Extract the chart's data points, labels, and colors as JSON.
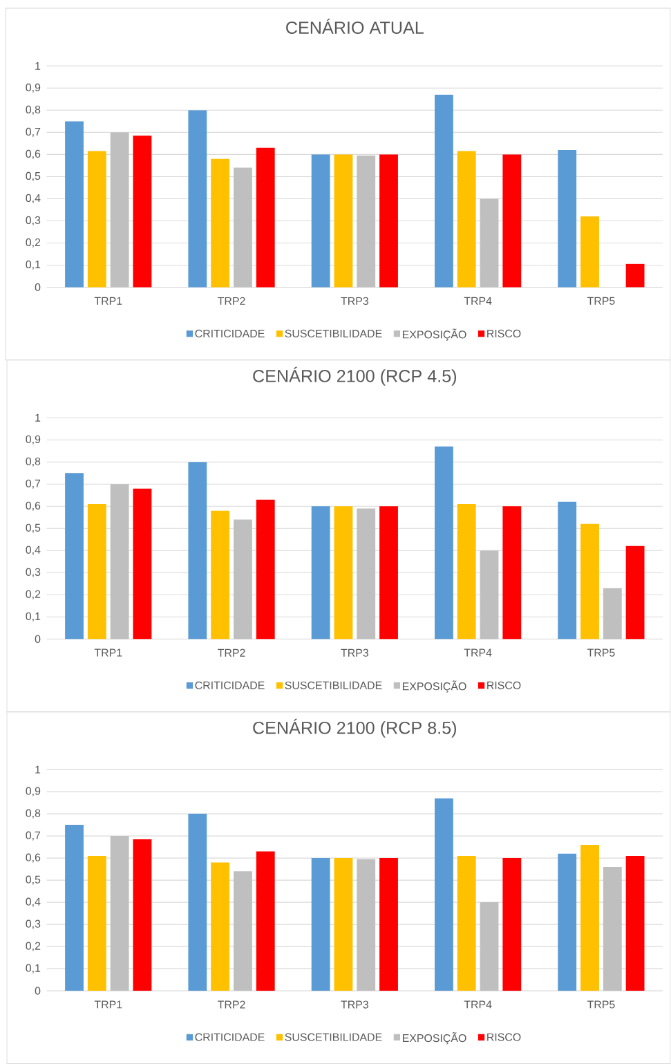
{
  "chart_data": [
    {
      "type": "bar",
      "title": "CENÁRIO ATUAL",
      "categories": [
        "TRP1",
        "TRP2",
        "TRP3",
        "TRP4",
        "TRP5"
      ],
      "ylim": [
        0,
        1
      ],
      "yticks": [
        0,
        {
          "value": 0.1,
          "label": "0,1"
        },
        {
          "value": 0.2,
          "label": "0,2"
        },
        {
          "value": 0.3,
          "label": "0,3"
        },
        {
          "value": 0.4,
          "label": "0,4"
        },
        {
          "value": 0.5,
          "label": "0,5"
        },
        {
          "value": 0.6,
          "label": "0,6"
        },
        {
          "value": 0.7,
          "label": "0,7"
        },
        {
          "value": 0.8,
          "label": "0,8"
        },
        {
          "value": 0.9,
          "label": "0,9"
        },
        1
      ],
      "grid": "y",
      "legend": "bottom",
      "series": [
        {
          "name": "CRITICIDADE",
          "color": "#5b9bd5",
          "values": [
            0.75,
            0.8,
            0.6,
            0.87,
            0.62
          ]
        },
        {
          "name": "SUSCETIBILIDADE",
          "color": "#ffc000",
          "values": [
            0.615,
            0.58,
            0.6,
            0.615,
            0.32
          ]
        },
        {
          "name": "EXPOSIÇÃO",
          "color": "#bfbfbf",
          "values": [
            0.7,
            0.54,
            0.595,
            0.4,
            null
          ]
        },
        {
          "name": "RISCO",
          "color": "#ff0000",
          "values": [
            0.685,
            0.63,
            0.6,
            0.6,
            0.105
          ]
        }
      ]
    },
    {
      "type": "bar",
      "title": "CENÁRIO  2100 (RCP 4.5)",
      "categories": [
        "TRP1",
        "TRP2",
        "TRP3",
        "TRP4",
        "TRP5"
      ],
      "ylim": [
        0,
        1
      ],
      "yticks": [
        0,
        {
          "value": 0.1,
          "label": "0,1"
        },
        {
          "value": 0.2,
          "label": "0,2"
        },
        {
          "value": 0.3,
          "label": "0,3"
        },
        {
          "value": 0.4,
          "label": "0,4"
        },
        {
          "value": 0.5,
          "label": "0,5"
        },
        {
          "value": 0.6,
          "label": "0,6"
        },
        {
          "value": 0.7,
          "label": "0,7"
        },
        {
          "value": 0.8,
          "label": "0,8"
        },
        {
          "value": 0.9,
          "label": "0,9"
        },
        1
      ],
      "grid": "y",
      "legend": "bottom",
      "series": [
        {
          "name": "CRITICIDADE",
          "color": "#5b9bd5",
          "values": [
            0.75,
            0.8,
            0.6,
            0.87,
            0.62
          ]
        },
        {
          "name": "SUSCETIBILIDADE",
          "color": "#ffc000",
          "values": [
            0.61,
            0.58,
            0.6,
            0.61,
            0.52
          ]
        },
        {
          "name": "EXPOSIÇÃO",
          "color": "#bfbfbf",
          "values": [
            0.7,
            0.54,
            0.59,
            0.4,
            0.23
          ]
        },
        {
          "name": "RISCO",
          "color": "#ff0000",
          "values": [
            0.68,
            0.63,
            0.6,
            0.6,
            0.42
          ]
        }
      ]
    },
    {
      "type": "bar",
      "title": "CENÁRIO  2100 (RCP 8.5)",
      "categories": [
        "TRP1",
        "TRP2",
        "TRP3",
        "TRP4",
        "TRP5"
      ],
      "ylim": [
        0,
        1
      ],
      "yticks": [
        0,
        {
          "value": 0.1,
          "label": "0,1"
        },
        {
          "value": 0.2,
          "label": "0,2"
        },
        {
          "value": 0.3,
          "label": "0,3"
        },
        {
          "value": 0.4,
          "label": "0,4"
        },
        {
          "value": 0.5,
          "label": "0,5"
        },
        {
          "value": 0.6,
          "label": "0,6"
        },
        {
          "value": 0.7,
          "label": "0,7"
        },
        {
          "value": 0.8,
          "label": "0,8"
        },
        {
          "value": 0.9,
          "label": "0,9"
        },
        1
      ],
      "grid": "y",
      "legend": "bottom",
      "series": [
        {
          "name": "CRITICIDADE",
          "color": "#5b9bd5",
          "values": [
            0.75,
            0.8,
            0.6,
            0.87,
            0.62
          ]
        },
        {
          "name": "SUSCETIBILIDADE",
          "color": "#ffc000",
          "values": [
            0.61,
            0.58,
            0.6,
            0.61,
            0.66
          ]
        },
        {
          "name": "EXPOSIÇÃO",
          "color": "#bfbfbf",
          "values": [
            0.7,
            0.54,
            0.595,
            0.4,
            0.56
          ]
        },
        {
          "name": "RISCO",
          "color": "#ff0000",
          "values": [
            0.685,
            0.63,
            0.6,
            0.6,
            0.61
          ]
        }
      ]
    }
  ]
}
